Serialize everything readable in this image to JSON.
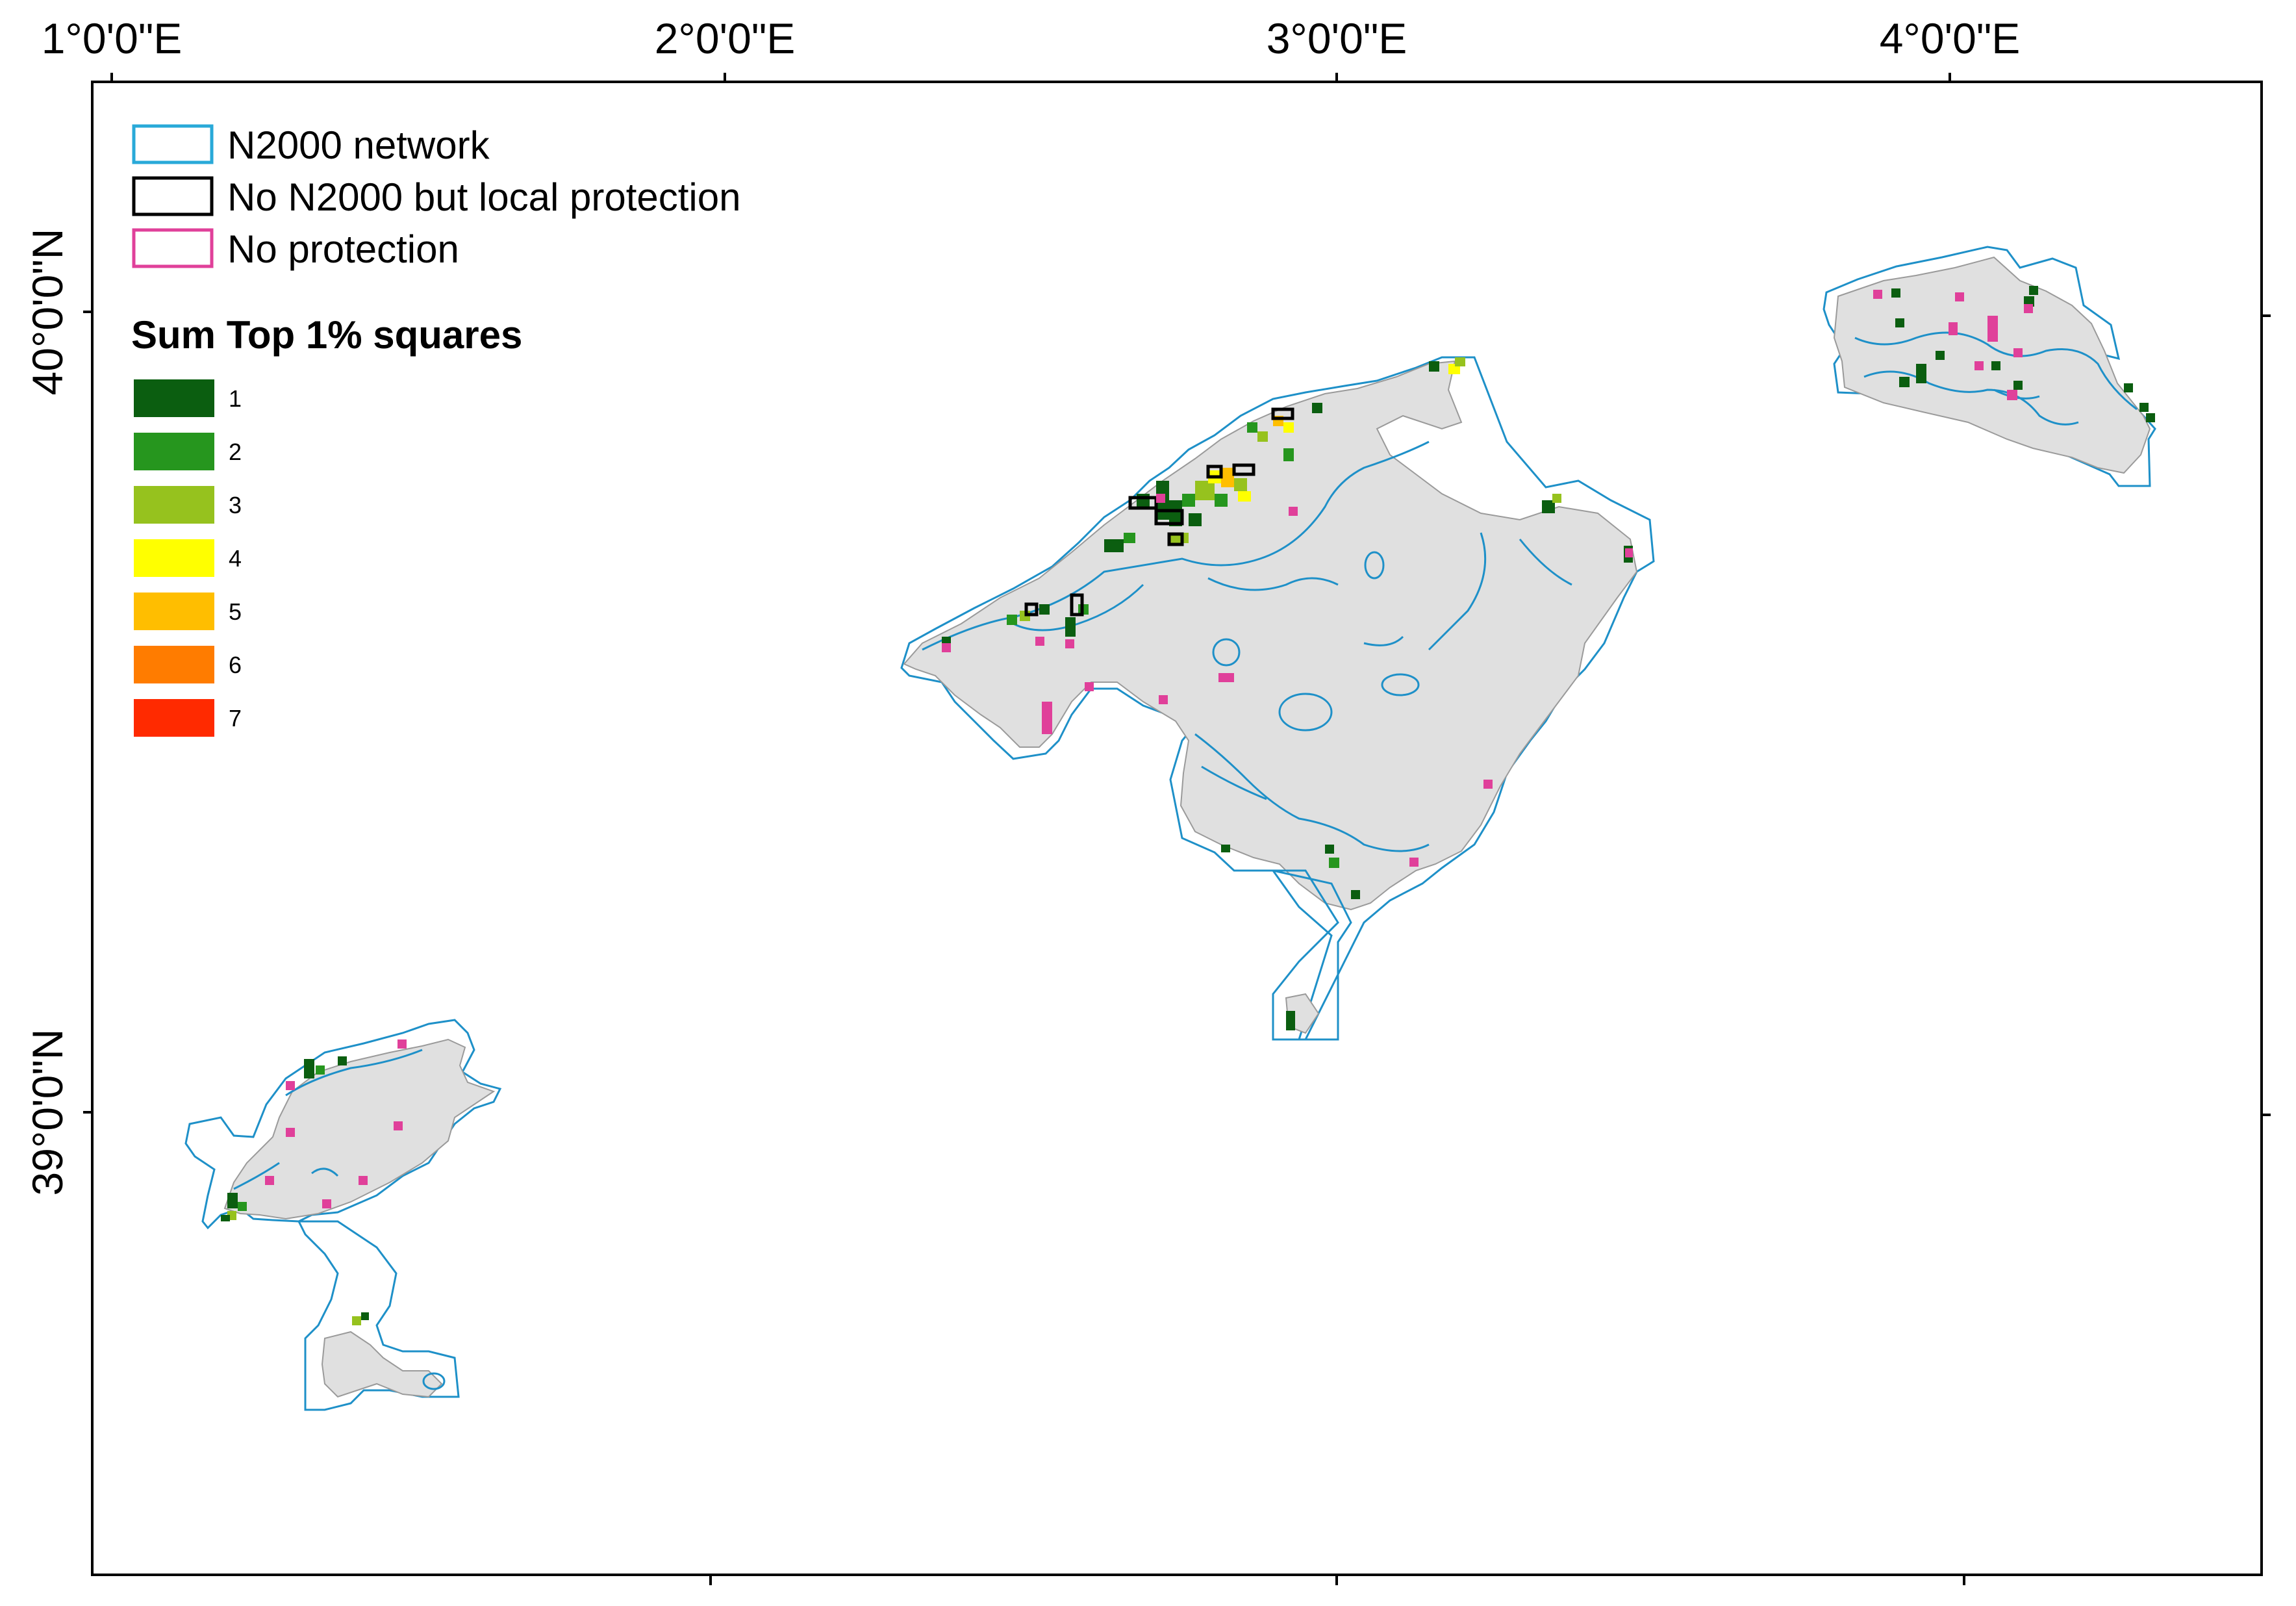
{
  "axes": {
    "longitude_labels": [
      "1°0'0\"E",
      "2°0'0\"E",
      "3°0'0\"E",
      "4°0'0\"E"
    ],
    "latitude_labels": [
      "40°0'0\"N",
      "39°0'0\"N"
    ]
  },
  "legend": {
    "protection": [
      {
        "label": "N2000 network",
        "color": "#29a9d8"
      },
      {
        "label": "No N2000 but local protection",
        "color": "#000000"
      },
      {
        "label": "No protection",
        "color": "#e0409a"
      }
    ],
    "sum_title": "Sum Top 1% squares",
    "sum_classes": [
      {
        "label": "1",
        "color": "#0b5e10"
      },
      {
        "label": "2",
        "color": "#26961e"
      },
      {
        "label": "3",
        "color": "#96c21e"
      },
      {
        "label": "4",
        "color": "#ffff00"
      },
      {
        "label": "5",
        "color": "#ffbe00"
      },
      {
        "label": "6",
        "color": "#ff7c00"
      },
      {
        "label": "7",
        "color": "#ff2a00"
      }
    ]
  }
}
